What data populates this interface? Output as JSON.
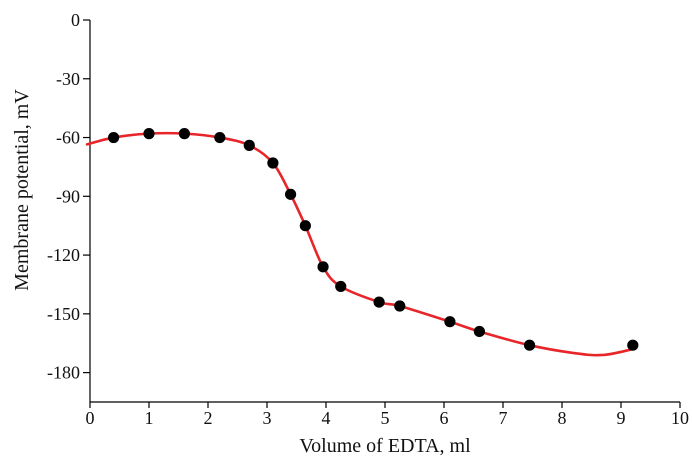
{
  "chart_data": {
    "type": "scatter",
    "title": "",
    "xlabel": "Volume of EDTA, ml",
    "ylabel": "Membrane potential, mV",
    "xlim": [
      0,
      10
    ],
    "ylim": [
      -195,
      0
    ],
    "x_ticks": [
      0,
      1,
      2,
      3,
      4,
      5,
      6,
      7,
      8,
      9,
      10
    ],
    "y_ticks": [
      0,
      -30,
      -60,
      -90,
      -120,
      -150,
      -180
    ],
    "x_tick_labels": [
      "0",
      "1",
      "2",
      "3",
      "4",
      "5",
      "6",
      "7",
      "8",
      "9",
      "10"
    ],
    "y_tick_labels": [
      "0",
      "-30",
      "-60",
      "-90",
      "-120",
      "-150",
      "-180"
    ],
    "grid": false,
    "legend": "none",
    "series": [
      {
        "kind": "points",
        "color": "#000000",
        "x": [
          0.4,
          1.0,
          1.6,
          2.2,
          2.7,
          3.1,
          3.4,
          3.65,
          3.95,
          4.25,
          4.9,
          5.25,
          6.1,
          6.6,
          7.45,
          9.2
        ],
        "y": [
          -60,
          -58,
          -58,
          -60,
          -64,
          -73,
          -89,
          -105,
          -126,
          -136,
          -144,
          -146,
          -154,
          -159,
          -166,
          -166
        ]
      },
      {
        "kind": "fit-curve",
        "color": "#e8262a",
        "x": [
          -0.05,
          0.4,
          1.0,
          1.6,
          2.2,
          2.7,
          3.1,
          3.4,
          3.65,
          3.95,
          4.25,
          4.9,
          5.25,
          6.1,
          6.6,
          7.45,
          8.2,
          8.7,
          9.2
        ],
        "y": [
          -63.5,
          -60,
          -58,
          -58,
          -60,
          -64,
          -73,
          -89,
          -105,
          -126,
          -136,
          -144,
          -146,
          -154,
          -159,
          -166,
          -170,
          -171,
          -168
        ]
      }
    ]
  }
}
